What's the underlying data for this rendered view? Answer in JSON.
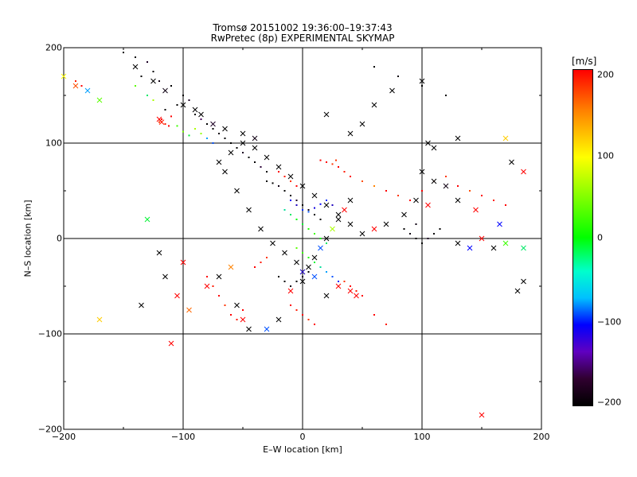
{
  "chart_data": {
    "type": "scatter",
    "title": "Tromsø 20151002 19:36:00–19:37:43",
    "subtitle": "RwPretec (8p) EXPERIMENTAL SKYMAP",
    "xlabel": "E–W location [km]",
    "ylabel": "N–S location [km]",
    "xlim": [
      -200,
      200
    ],
    "ylim": [
      -200,
      200
    ],
    "x_ticks": [
      "−200",
      "−100",
      "0",
      "100",
      "200"
    ],
    "y_ticks": [
      "200",
      "100",
      "0",
      "−100",
      "−200"
    ],
    "grid": true,
    "colorbar": {
      "unit": "[m/s]",
      "range": [
        -200,
        200
      ],
      "ticks": [
        "200",
        "100",
        "0",
        "−100",
        "−200"
      ],
      "colormap": "rainbow (black → purple → blue → cyan → green → yellow → red)"
    },
    "series": [
      {
        "marker": "dot",
        "points": [
          [
            -150,
            195,
            -200
          ],
          [
            -140,
            190,
            -200
          ],
          [
            -130,
            185,
            -180
          ],
          [
            -125,
            175,
            -200
          ],
          [
            -135,
            170,
            -200
          ],
          [
            -120,
            165,
            -190
          ],
          [
            -110,
            160,
            -200
          ],
          [
            -100,
            150,
            -200
          ],
          [
            -95,
            145,
            -180
          ],
          [
            -105,
            140,
            -200
          ],
          [
            -115,
            135,
            -200
          ],
          [
            -90,
            130,
            -200
          ],
          [
            -85,
            125,
            -150
          ],
          [
            -80,
            120,
            -200
          ],
          [
            -75,
            115,
            -200
          ],
          [
            -70,
            110,
            -190
          ],
          [
            -65,
            105,
            -200
          ],
          [
            -60,
            100,
            -200
          ],
          [
            -55,
            95,
            -200
          ],
          [
            -50,
            90,
            -180
          ],
          [
            -45,
            85,
            -200
          ],
          [
            -40,
            80,
            -200
          ],
          [
            -35,
            75,
            -170
          ],
          [
            -30,
            70,
            -200
          ],
          [
            -118,
            125,
            200
          ],
          [
            -115,
            120,
            190
          ],
          [
            -112,
            118,
            200
          ],
          [
            -120,
            122,
            180
          ],
          [
            -110,
            128,
            200
          ],
          [
            -90,
            115,
            60
          ],
          [
            -85,
            110,
            50
          ],
          [
            -80,
            105,
            -60
          ],
          [
            -75,
            100,
            -80
          ],
          [
            -100,
            112,
            40
          ],
          [
            -95,
            108,
            -10
          ],
          [
            -105,
            118,
            20
          ],
          [
            -140,
            160,
            30
          ],
          [
            -130,
            150,
            -20
          ],
          [
            -125,
            145,
            60
          ],
          [
            -20,
            70,
            200
          ],
          [
            -15,
            65,
            190
          ],
          [
            -10,
            60,
            180
          ],
          [
            -5,
            55,
            200
          ],
          [
            20,
            80,
            200
          ],
          [
            25,
            78,
            180
          ],
          [
            30,
            75,
            200
          ],
          [
            35,
            70,
            190
          ],
          [
            40,
            65,
            200
          ],
          [
            15,
            82,
            200
          ],
          [
            28,
            82,
            180
          ],
          [
            50,
            60,
            170
          ],
          [
            60,
            55,
            150
          ],
          [
            70,
            50,
            200
          ],
          [
            80,
            45,
            180
          ],
          [
            90,
            40,
            200
          ],
          [
            100,
            50,
            200
          ],
          [
            110,
            60,
            190
          ],
          [
            120,
            65,
            180
          ],
          [
            130,
            55,
            200
          ],
          [
            140,
            50,
            170
          ],
          [
            150,
            45,
            200
          ],
          [
            160,
            40,
            190
          ],
          [
            170,
            35,
            200
          ],
          [
            -30,
            60,
            -200
          ],
          [
            -25,
            58,
            -200
          ],
          [
            -20,
            55,
            -190
          ],
          [
            -15,
            50,
            -200
          ],
          [
            -10,
            45,
            -200
          ],
          [
            -5,
            40,
            -180
          ],
          [
            0,
            35,
            -200
          ],
          [
            5,
            30,
            -190
          ],
          [
            10,
            25,
            -200
          ],
          [
            15,
            20,
            -200
          ],
          [
            -10,
            40,
            -100
          ],
          [
            -5,
            35,
            -120
          ],
          [
            0,
            30,
            -90
          ],
          [
            5,
            28,
            -80
          ],
          [
            10,
            32,
            -110
          ],
          [
            15,
            36,
            -100
          ],
          [
            20,
            40,
            -90
          ],
          [
            25,
            35,
            -120
          ],
          [
            -15,
            30,
            -30
          ],
          [
            -10,
            25,
            -20
          ],
          [
            -5,
            20,
            0
          ],
          [
            0,
            15,
            -10
          ],
          [
            5,
            10,
            10
          ],
          [
            10,
            5,
            20
          ],
          [
            15,
            0,
            0
          ],
          [
            20,
            -5,
            -20
          ],
          [
            -5,
            -10,
            30
          ],
          [
            0,
            -15,
            20
          ],
          [
            5,
            -20,
            10
          ],
          [
            10,
            -25,
            -10
          ],
          [
            15,
            -30,
            -30
          ],
          [
            20,
            -35,
            -60
          ],
          [
            25,
            -40,
            -80
          ],
          [
            30,
            -45,
            -90
          ],
          [
            -20,
            -40,
            -200
          ],
          [
            -15,
            -45,
            -200
          ],
          [
            -10,
            -50,
            -190
          ],
          [
            -5,
            -45,
            -200
          ],
          [
            0,
            -40,
            -180
          ],
          [
            5,
            -35,
            -200
          ],
          [
            85,
            10,
            -200
          ],
          [
            90,
            5,
            -190
          ],
          [
            95,
            0,
            -200
          ],
          [
            100,
            -5,
            -200
          ],
          [
            105,
            0,
            -180
          ],
          [
            110,
            5,
            -200
          ],
          [
            115,
            10,
            -200
          ],
          [
            95,
            15,
            -190
          ],
          [
            -80,
            -40,
            200
          ],
          [
            -75,
            -50,
            190
          ],
          [
            -70,
            -60,
            200
          ],
          [
            -65,
            -70,
            180
          ],
          [
            -60,
            -80,
            200
          ],
          [
            -55,
            -85,
            190
          ],
          [
            -50,
            -75,
            200
          ],
          [
            -40,
            -30,
            200
          ],
          [
            -35,
            -25,
            190
          ],
          [
            -30,
            -20,
            180
          ],
          [
            40,
            -50,
            200
          ],
          [
            45,
            -55,
            190
          ],
          [
            50,
            -60,
            200
          ],
          [
            35,
            -45,
            180
          ],
          [
            60,
            -80,
            200
          ],
          [
            70,
            -90,
            190
          ],
          [
            -10,
            -70,
            200
          ],
          [
            -5,
            -75,
            190
          ],
          [
            0,
            -80,
            200
          ],
          [
            5,
            -85,
            180
          ],
          [
            10,
            -90,
            200
          ],
          [
            -190,
            165,
            190
          ],
          [
            -185,
            160,
            200
          ],
          [
            60,
            180,
            -200
          ],
          [
            80,
            170,
            -190
          ],
          [
            100,
            160,
            -200
          ],
          [
            120,
            150,
            -200
          ]
        ]
      },
      {
        "marker": "cross",
        "points": [
          [
            -140,
            180,
            -200
          ],
          [
            -125,
            165,
            -200
          ],
          [
            -115,
            155,
            -190
          ],
          [
            -100,
            140,
            -200
          ],
          [
            -90,
            135,
            -200
          ],
          [
            -85,
            130,
            -200
          ],
          [
            -75,
            120,
            -180
          ],
          [
            -65,
            115,
            -200
          ],
          [
            -50,
            110,
            -200
          ],
          [
            -40,
            105,
            -190
          ],
          [
            -120,
            125,
            200
          ],
          [
            -118,
            122,
            190
          ],
          [
            -190,
            160,
            170
          ],
          [
            -180,
            155,
            -60
          ],
          [
            -170,
            145,
            30
          ],
          [
            -200,
            170,
            100
          ],
          [
            -130,
            20,
            -10
          ],
          [
            -135,
            -70,
            -200
          ],
          [
            -110,
            -110,
            200
          ],
          [
            -105,
            -60,
            200
          ],
          [
            -100,
            -25,
            200
          ],
          [
            -120,
            -15,
            -200
          ],
          [
            -115,
            -40,
            -200
          ],
          [
            -95,
            -75,
            160
          ],
          [
            -80,
            -50,
            200
          ],
          [
            -70,
            -40,
            -200
          ],
          [
            -60,
            -30,
            150
          ],
          [
            -55,
            -70,
            -200
          ],
          [
            -50,
            -85,
            200
          ],
          [
            -45,
            -95,
            -200
          ],
          [
            -30,
            -95,
            -80
          ],
          [
            -20,
            -85,
            -200
          ],
          [
            -10,
            -55,
            200
          ],
          [
            0,
            -45,
            -200
          ],
          [
            10,
            -40,
            -80
          ],
          [
            20,
            -60,
            -200
          ],
          [
            30,
            -50,
            200
          ],
          [
            40,
            -55,
            200
          ],
          [
            45,
            -60,
            200
          ],
          [
            170,
            105,
            120
          ],
          [
            175,
            80,
            -200
          ],
          [
            185,
            70,
            200
          ],
          [
            150,
            -185,
            200
          ],
          [
            185,
            -45,
            -200
          ],
          [
            180,
            -55,
            -200
          ],
          [
            160,
            -10,
            -200
          ],
          [
            170,
            -5,
            20
          ],
          [
            185,
            -10,
            -20
          ],
          [
            130,
            -5,
            -200
          ],
          [
            140,
            -10,
            -100
          ],
          [
            150,
            0,
            200
          ],
          [
            165,
            15,
            -100
          ],
          [
            145,
            30,
            200
          ],
          [
            130,
            40,
            -200
          ],
          [
            110,
            60,
            -200
          ],
          [
            120,
            55,
            -190
          ],
          [
            100,
            70,
            -200
          ],
          [
            95,
            40,
            -200
          ],
          [
            105,
            35,
            200
          ],
          [
            85,
            25,
            -200
          ],
          [
            70,
            15,
            -200
          ],
          [
            60,
            10,
            200
          ],
          [
            50,
            5,
            -200
          ],
          [
            40,
            40,
            -200
          ],
          [
            35,
            30,
            200
          ],
          [
            30,
            20,
            -200
          ],
          [
            25,
            10,
            60
          ],
          [
            20,
            0,
            -200
          ],
          [
            15,
            -10,
            -80
          ],
          [
            10,
            -20,
            -200
          ],
          [
            5,
            -30,
            -200
          ],
          [
            0,
            -35,
            -120
          ],
          [
            -5,
            -25,
            -200
          ],
          [
            -15,
            -15,
            -200
          ],
          [
            -25,
            -5,
            -200
          ],
          [
            -35,
            10,
            -200
          ],
          [
            -45,
            30,
            -200
          ],
          [
            -55,
            50,
            -200
          ],
          [
            -65,
            70,
            -200
          ],
          [
            -70,
            80,
            -200
          ],
          [
            -60,
            90,
            -200
          ],
          [
            -50,
            100,
            -200
          ],
          [
            -40,
            95,
            -200
          ],
          [
            -30,
            85,
            -200
          ],
          [
            -20,
            75,
            -200
          ],
          [
            -10,
            65,
            -200
          ],
          [
            0,
            55,
            -200
          ],
          [
            10,
            45,
            -200
          ],
          [
            20,
            35,
            -200
          ],
          [
            30,
            25,
            -200
          ],
          [
            40,
            15,
            -200
          ],
          [
            60,
            140,
            -200
          ],
          [
            40,
            110,
            -200
          ],
          [
            20,
            130,
            -200
          ],
          [
            50,
            120,
            -200
          ],
          [
            100,
            165,
            -200
          ],
          [
            75,
            155,
            -200
          ],
          [
            105,
            100,
            -200
          ],
          [
            110,
            95,
            -200
          ],
          [
            130,
            105,
            -200
          ],
          [
            -170,
            -85,
            120
          ]
        ]
      }
    ]
  }
}
